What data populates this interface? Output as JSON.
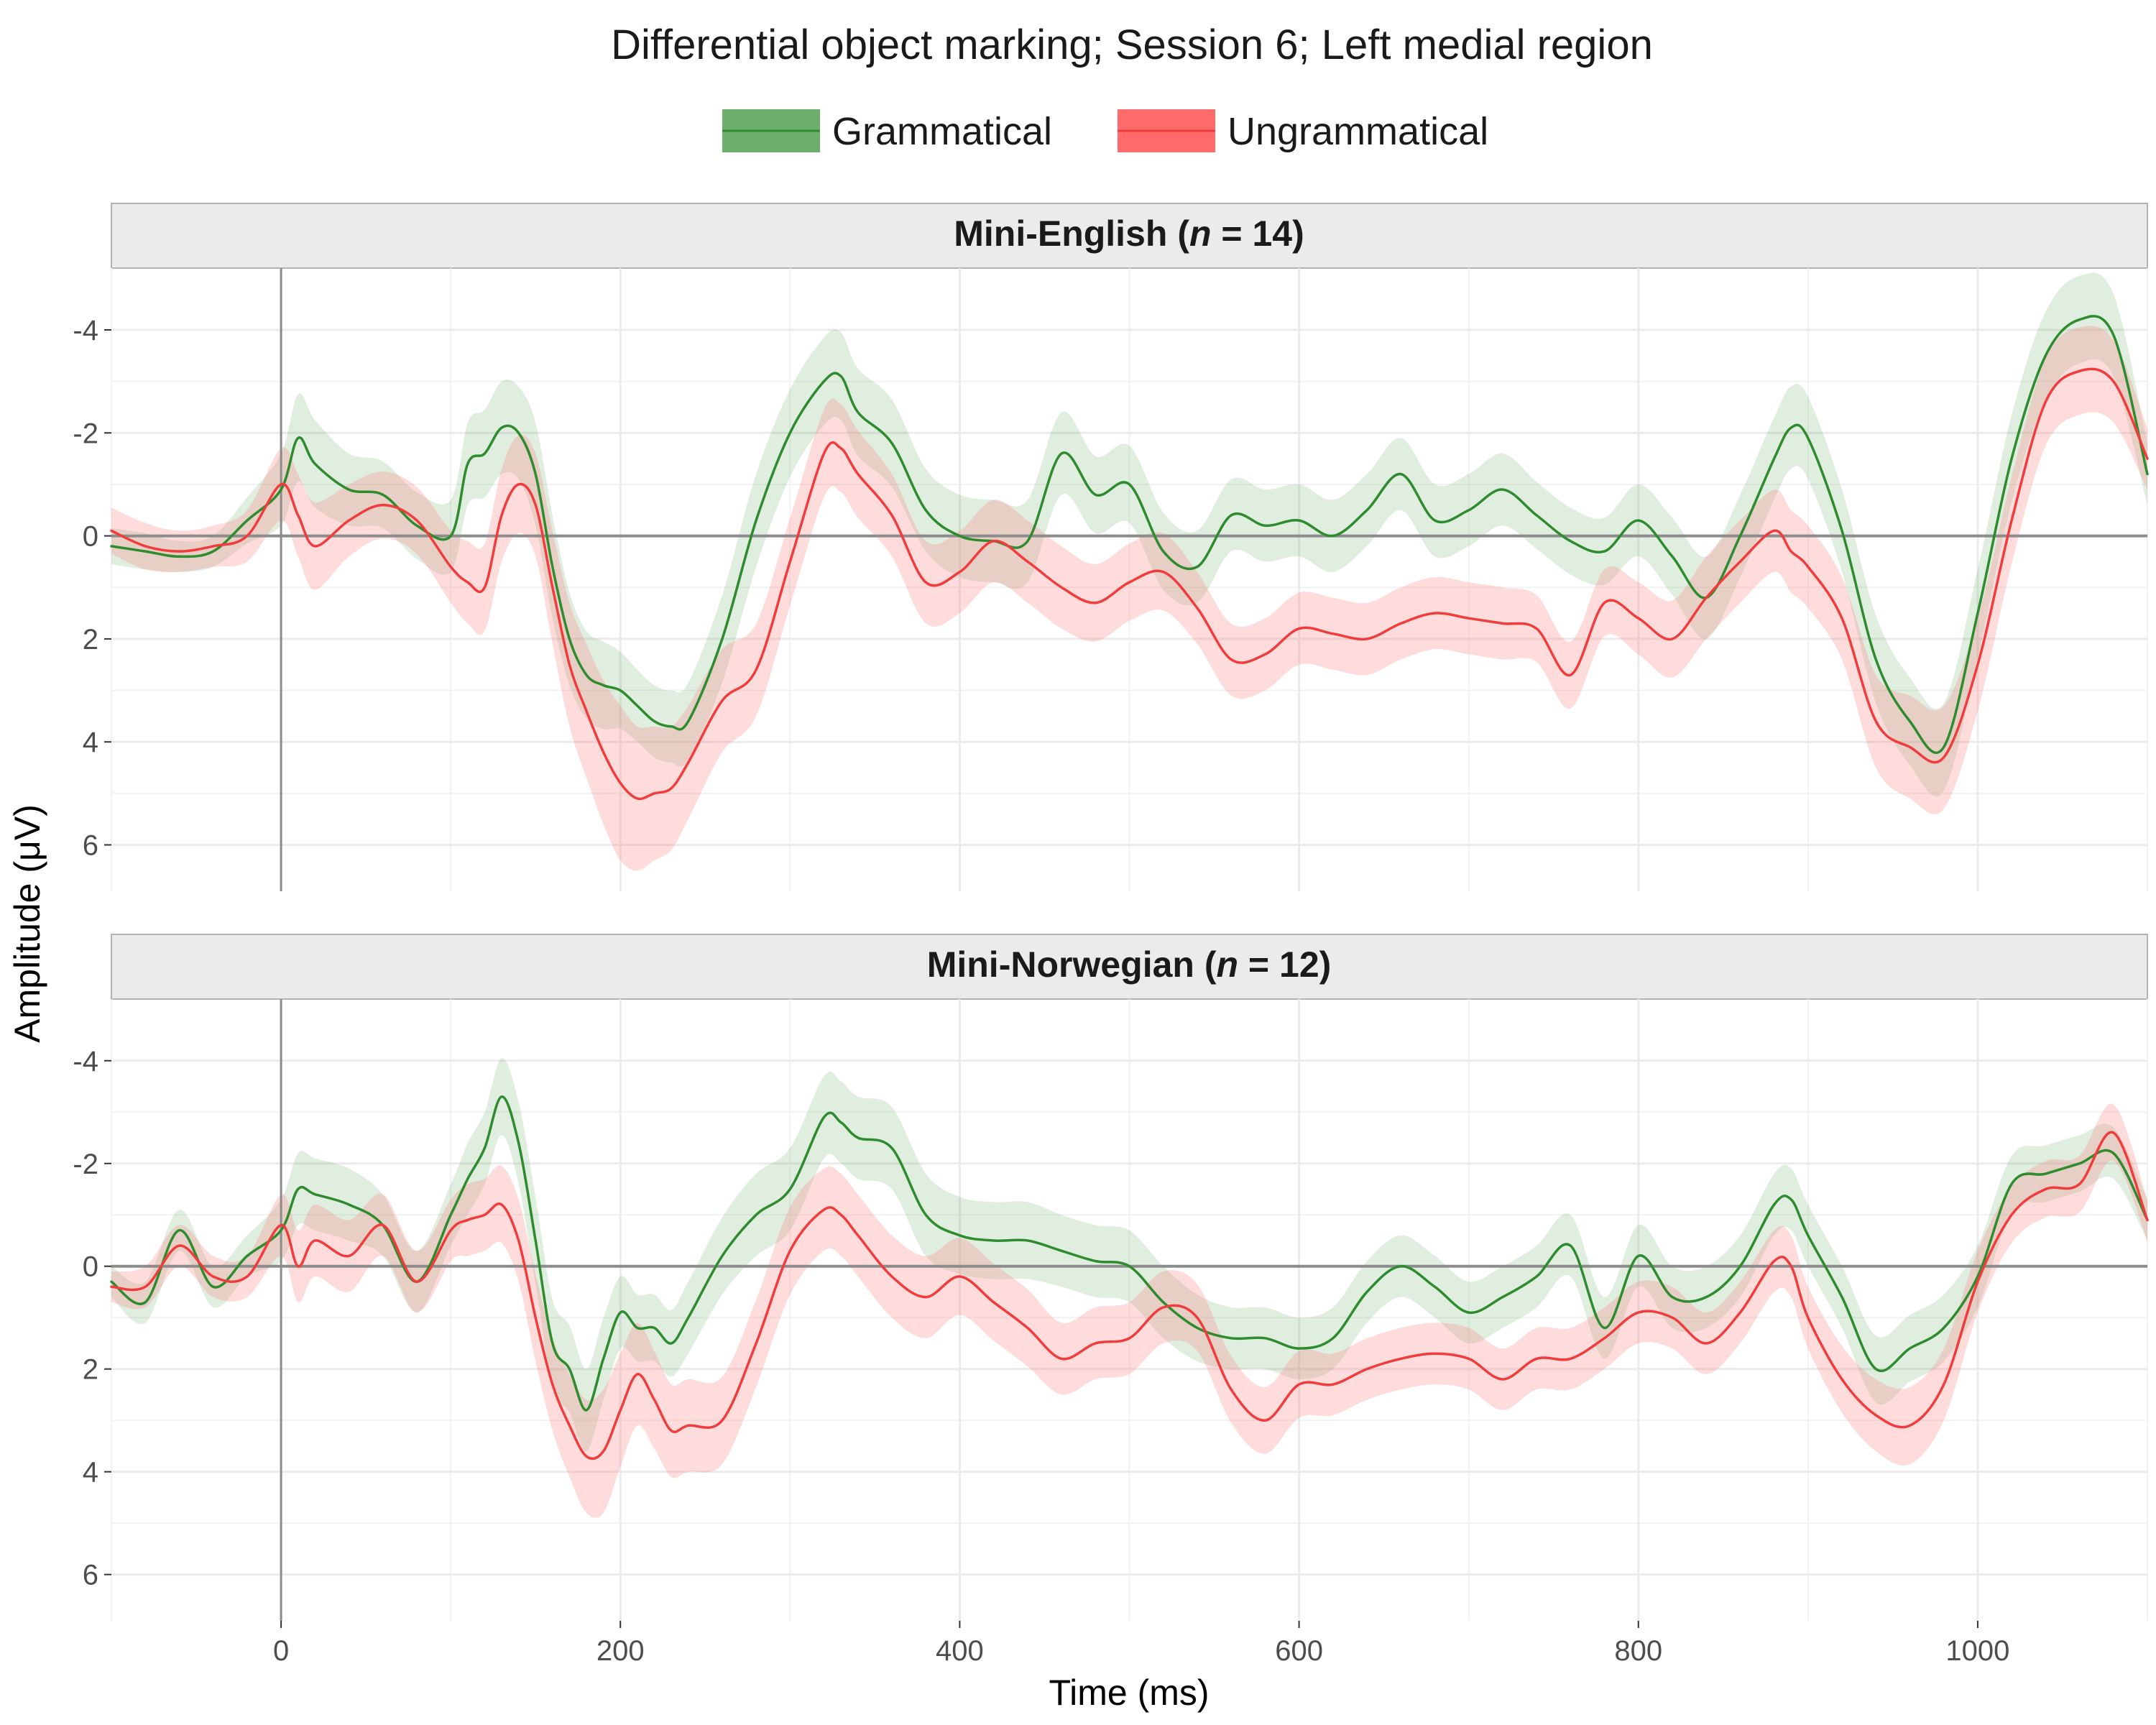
{
  "chart_data": {
    "type": "line",
    "title": "Differential object marking; Session 6; Left medial region",
    "xlabel": "Time (ms)",
    "ylabel": "Amplitude (μV)",
    "xlim": [
      -100,
      1100
    ],
    "ylim": [
      -5.2,
      6.9
    ],
    "y_reversed": true,
    "x_ticks": [
      0,
      200,
      400,
      600,
      800,
      1000
    ],
    "y_ticks": [
      -4,
      -2,
      0,
      2,
      4,
      6
    ],
    "legend_position": "top",
    "grid": true,
    "legend": [
      {
        "name": "Grammatical",
        "color": "#2e8b2e",
        "ribbon": "#2e8b2e"
      },
      {
        "name": "Ungrammatical",
        "color": "#f03c3c",
        "ribbon": "#ff8080"
      }
    ],
    "panels": [
      {
        "label_prefix": "Mini-English (",
        "label_n": "n",
        "label_suffix": " = 14)",
        "x": [
          -100,
          -80,
          -60,
          -40,
          -20,
          0,
          10,
          20,
          40,
          60,
          80,
          100,
          110,
          120,
          130,
          140,
          150,
          160,
          170,
          180,
          190,
          200,
          210,
          220,
          230,
          240,
          260,
          280,
          300,
          320,
          330,
          340,
          360,
          380,
          400,
          420,
          440,
          460,
          480,
          500,
          520,
          540,
          560,
          580,
          600,
          620,
          640,
          660,
          680,
          700,
          720,
          740,
          760,
          780,
          800,
          820,
          840,
          860,
          880,
          890,
          900,
          920,
          940,
          960,
          980,
          1000,
          1020,
          1040,
          1060,
          1080,
          1100
        ],
        "series": [
          {
            "name": "Grammatical",
            "values": [
              0.2,
              0.3,
              0.4,
              0.3,
              -0.3,
              -0.9,
              -1.9,
              -1.4,
              -0.9,
              -0.8,
              -0.2,
              0.0,
              -1.4,
              -1.6,
              -2.1,
              -2.0,
              -1.2,
              0.6,
              2.0,
              2.7,
              2.9,
              3.0,
              3.3,
              3.6,
              3.7,
              3.6,
              2.0,
              -0.3,
              -2.0,
              -3.0,
              -3.1,
              -2.4,
              -1.8,
              -0.5,
              0.0,
              0.1,
              0.1,
              -1.6,
              -0.8,
              -1.0,
              0.3,
              0.6,
              -0.4,
              -0.2,
              -0.3,
              0.0,
              -0.5,
              -1.2,
              -0.3,
              -0.5,
              -0.9,
              -0.4,
              0.1,
              0.3,
              -0.3,
              0.4,
              1.2,
              0.0,
              -1.5,
              -2.1,
              -1.9,
              -0.1,
              2.4,
              3.6,
              4.1,
              1.5,
              -1.5,
              -3.5,
              -4.2,
              -3.9,
              -1.2
            ],
            "band": [
              0.35,
              0.35,
              0.3,
              0.3,
              0.45,
              0.7,
              0.85,
              0.85,
              0.7,
              0.65,
              0.65,
              0.7,
              0.8,
              0.85,
              0.9,
              0.9,
              1.0,
              1.0,
              0.9,
              0.85,
              0.85,
              0.75,
              0.7,
              0.7,
              0.7,
              0.75,
              0.85,
              0.9,
              0.85,
              0.85,
              0.85,
              0.85,
              0.85,
              0.8,
              0.8,
              0.8,
              0.8,
              0.8,
              0.75,
              0.75,
              0.75,
              0.7,
              0.7,
              0.7,
              0.7,
              0.7,
              0.7,
              0.7,
              0.7,
              0.7,
              0.7,
              0.65,
              0.65,
              0.65,
              0.7,
              0.75,
              0.8,
              0.8,
              0.8,
              0.8,
              0.8,
              0.8,
              0.85,
              0.85,
              0.85,
              0.85,
              0.85,
              0.85,
              0.85,
              0.8,
              0.6
            ]
          },
          {
            "name": "Ungrammatical",
            "values": [
              -0.1,
              0.2,
              0.3,
              0.2,
              0.0,
              -1.0,
              -0.4,
              0.2,
              -0.3,
              -0.6,
              -0.3,
              0.6,
              0.9,
              1.0,
              -0.4,
              -1.0,
              -0.6,
              1.0,
              2.5,
              3.4,
              4.2,
              4.8,
              5.1,
              5.0,
              4.9,
              4.4,
              3.2,
              2.6,
              0.5,
              -1.6,
              -1.7,
              -1.2,
              -0.4,
              0.9,
              0.7,
              0.1,
              0.5,
              1.0,
              1.3,
              0.9,
              0.7,
              1.4,
              2.4,
              2.3,
              1.8,
              1.9,
              2.0,
              1.7,
              1.5,
              1.6,
              1.7,
              1.8,
              2.7,
              1.3,
              1.6,
              2.0,
              1.2,
              0.5,
              -0.1,
              0.3,
              0.6,
              1.6,
              3.6,
              4.1,
              4.3,
              2.5,
              -0.3,
              -2.6,
              -3.2,
              -3.0,
              -1.5
            ],
            "band": [
              0.45,
              0.45,
              0.4,
              0.4,
              0.5,
              0.7,
              0.8,
              0.85,
              0.7,
              0.65,
              0.65,
              0.7,
              0.8,
              0.85,
              0.9,
              0.95,
              1.0,
              1.1,
              1.2,
              1.3,
              1.4,
              1.5,
              1.4,
              1.3,
              1.2,
              1.1,
              1.0,
              0.9,
              0.85,
              0.85,
              0.85,
              0.85,
              0.8,
              0.8,
              0.8,
              0.8,
              0.8,
              0.8,
              0.75,
              0.75,
              0.75,
              0.7,
              0.7,
              0.7,
              0.7,
              0.7,
              0.7,
              0.7,
              0.7,
              0.7,
              0.7,
              0.65,
              0.65,
              0.65,
              0.7,
              0.75,
              0.8,
              0.8,
              0.8,
              0.8,
              0.8,
              0.8,
              0.9,
              1.0,
              1.0,
              0.9,
              0.85,
              0.85,
              0.85,
              0.8,
              0.6
            ]
          }
        ]
      },
      {
        "label_prefix": "Mini-Norwegian (",
        "label_n": "n",
        "label_suffix": " = 12)",
        "x": [
          -100,
          -80,
          -60,
          -40,
          -20,
          0,
          10,
          20,
          40,
          60,
          80,
          100,
          110,
          120,
          130,
          140,
          150,
          160,
          170,
          180,
          190,
          200,
          210,
          220,
          230,
          240,
          260,
          280,
          300,
          320,
          330,
          340,
          360,
          380,
          400,
          420,
          440,
          460,
          480,
          500,
          520,
          540,
          560,
          580,
          600,
          620,
          640,
          660,
          680,
          700,
          720,
          740,
          760,
          780,
          800,
          820,
          840,
          860,
          880,
          890,
          900,
          920,
          940,
          960,
          980,
          1000,
          1020,
          1040,
          1060,
          1080,
          1100
        ],
        "series": [
          {
            "name": "Grammatical",
            "values": [
              0.3,
              0.7,
              -0.7,
              0.4,
              -0.2,
              -0.7,
              -1.5,
              -1.4,
              -1.2,
              -0.8,
              0.3,
              -1.0,
              -1.7,
              -2.3,
              -3.3,
              -2.4,
              -0.5,
              1.5,
              2.0,
              2.8,
              1.8,
              0.9,
              1.2,
              1.2,
              1.5,
              1.0,
              -0.2,
              -1.0,
              -1.5,
              -2.9,
              -2.8,
              -2.5,
              -2.3,
              -1.0,
              -0.6,
              -0.5,
              -0.5,
              -0.3,
              -0.1,
              0.0,
              0.7,
              1.2,
              1.4,
              1.4,
              1.6,
              1.4,
              0.5,
              0.0,
              0.4,
              0.9,
              0.6,
              0.2,
              -0.4,
              1.2,
              -0.2,
              0.6,
              0.6,
              0.0,
              -1.2,
              -1.3,
              -0.6,
              0.6,
              2.0,
              1.6,
              1.2,
              0.2,
              -1.6,
              -1.8,
              -2.0,
              -2.2,
              -0.9
            ],
            "band": [
              0.3,
              0.4,
              0.4,
              0.4,
              0.4,
              0.6,
              0.7,
              0.7,
              0.7,
              0.6,
              0.6,
              0.6,
              0.7,
              0.7,
              0.75,
              0.8,
              0.85,
              0.85,
              0.85,
              0.8,
              0.8,
              0.7,
              0.65,
              0.65,
              0.65,
              0.7,
              0.75,
              0.8,
              0.8,
              0.8,
              0.8,
              0.8,
              0.8,
              0.8,
              0.75,
              0.75,
              0.75,
              0.7,
              0.7,
              0.7,
              0.7,
              0.65,
              0.6,
              0.6,
              0.6,
              0.6,
              0.6,
              0.6,
              0.6,
              0.6,
              0.6,
              0.6,
              0.6,
              0.6,
              0.6,
              0.6,
              0.6,
              0.6,
              0.6,
              0.6,
              0.6,
              0.6,
              0.65,
              0.65,
              0.65,
              0.6,
              0.55,
              0.55,
              0.55,
              0.5,
              0.4
            ]
          },
          {
            "name": "Ungrammatical",
            "values": [
              0.4,
              0.4,
              -0.4,
              0.2,
              0.2,
              -0.8,
              0.0,
              -0.5,
              -0.2,
              -0.8,
              0.3,
              -0.7,
              -0.9,
              -1.0,
              -1.2,
              -0.5,
              1.0,
              2.3,
              3.1,
              3.7,
              3.6,
              2.8,
              2.1,
              2.6,
              3.2,
              3.1,
              3.0,
              1.5,
              -0.3,
              -1.1,
              -1.0,
              -0.6,
              0.2,
              0.6,
              0.2,
              0.7,
              1.2,
              1.8,
              1.5,
              1.4,
              0.8,
              1.0,
              2.4,
              3.0,
              2.3,
              2.3,
              2.0,
              1.8,
              1.7,
              1.8,
              2.2,
              1.8,
              1.8,
              1.4,
              0.9,
              1.0,
              1.5,
              0.9,
              -0.1,
              0.0,
              1.0,
              2.2,
              2.9,
              3.1,
              2.3,
              0.3,
              -1.0,
              -1.5,
              -1.6,
              -2.6,
              -0.9
            ],
            "band": [
              0.3,
              0.4,
              0.4,
              0.4,
              0.4,
              0.6,
              0.7,
              0.7,
              0.7,
              0.6,
              0.6,
              0.6,
              0.7,
              0.7,
              0.75,
              0.8,
              0.85,
              0.9,
              1.0,
              1.1,
              1.2,
              1.1,
              1.0,
              0.95,
              0.9,
              0.9,
              0.85,
              0.85,
              0.85,
              0.8,
              0.8,
              0.8,
              0.8,
              0.8,
              0.75,
              0.75,
              0.75,
              0.7,
              0.7,
              0.7,
              0.7,
              0.65,
              0.65,
              0.65,
              0.65,
              0.6,
              0.6,
              0.6,
              0.6,
              0.6,
              0.6,
              0.6,
              0.6,
              0.6,
              0.6,
              0.6,
              0.6,
              0.6,
              0.6,
              0.6,
              0.6,
              0.65,
              0.7,
              0.75,
              0.7,
              0.6,
              0.55,
              0.55,
              0.55,
              0.55,
              0.4
            ]
          }
        ]
      }
    ]
  }
}
